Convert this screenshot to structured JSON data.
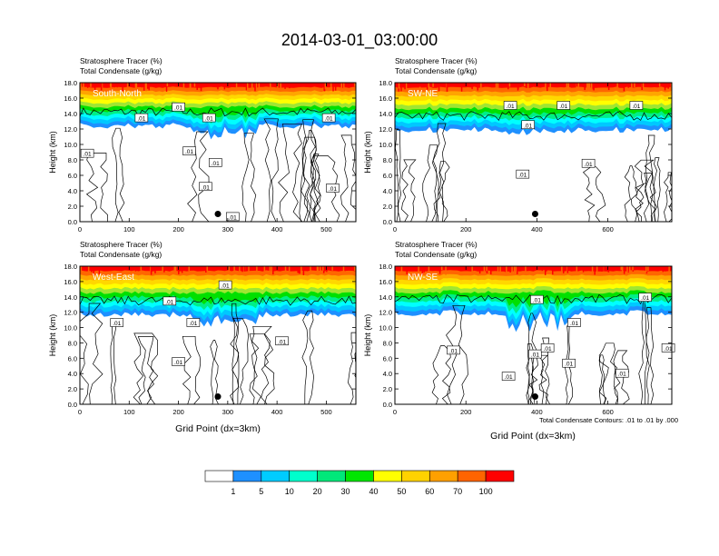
{
  "figure": {
    "title": "2014-03-01_03:00:00",
    "contour_note": "Total Condensate Contours: .01 to .01 by .000",
    "xlabel": "Grid Point (dx=3km)"
  },
  "chart_data": [
    {
      "type": "heatmap",
      "panel": "South-North",
      "subtitle1": "Stratosphere Tracer   (%)",
      "subtitle2": "Total Condensate   (g/kg)",
      "ylabel": "Height (km)",
      "xlim": [
        0,
        560
      ],
      "ylim": [
        0,
        18
      ],
      "xticks": [
        0,
        100,
        200,
        300,
        400,
        500
      ],
      "yticks": [
        "0.0",
        "2.0",
        "4.0",
        "6.0",
        "8.0",
        "10.0",
        "12.0",
        "14.0",
        "16.0",
        "18.0"
      ],
      "tracer_base_km": 13.0,
      "tracer_extend_km": 11.0,
      "marker": {
        "x": 280,
        "y_km": 1.0
      },
      "contour_labels": [
        {
          "text": ".01",
          "x": 15,
          "y_km": 8.8
        },
        {
          "text": ".01",
          "x": 125,
          "y_km": 13.4
        },
        {
          "text": ".01",
          "x": 200,
          "y_km": 14.8
        },
        {
          "text": ".01",
          "x": 262,
          "y_km": 13.4
        },
        {
          "text": ".01",
          "x": 222,
          "y_km": 9.1
        },
        {
          "text": ".01",
          "x": 275,
          "y_km": 7.6
        },
        {
          "text": ".01",
          "x": 255,
          "y_km": 4.5
        },
        {
          "text": ".01",
          "x": 513,
          "y_km": 4.3
        },
        {
          "text": ".01",
          "x": 505,
          "y_km": 13.4
        },
        {
          "text": ".01",
          "x": 310,
          "y_km": 0.6
        }
      ]
    },
    {
      "type": "heatmap",
      "panel": "SW-NE",
      "subtitle1": "Stratosphere Tracer   (%)",
      "subtitle2": "Total Condensate   (g/kg)",
      "ylabel": "Height (km)",
      "xlim": [
        0,
        780
      ],
      "ylim": [
        0,
        18
      ],
      "xticks": [
        0,
        200,
        400,
        600
      ],
      "yticks": [
        "0.0",
        "2.0",
        "4.0",
        "6.0",
        "8.0",
        "10.0",
        "12.0",
        "14.0",
        "16.0",
        "18.0"
      ],
      "tracer_base_km": 12.5,
      "tracer_extend_km": 12.0,
      "marker": {
        "x": 395,
        "y_km": 1.0
      },
      "contour_labels": [
        {
          "text": ".01",
          "x": 375,
          "y_km": 12.5
        },
        {
          "text": ".01",
          "x": 475,
          "y_km": 15.0
        },
        {
          "text": ".01",
          "x": 360,
          "y_km": 6.1
        },
        {
          "text": ".01",
          "x": 545,
          "y_km": 7.5
        },
        {
          "text": ".01",
          "x": 680,
          "y_km": 15.0
        },
        {
          "text": ".01",
          "x": 325,
          "y_km": 15.0
        }
      ]
    },
    {
      "type": "heatmap",
      "panel": "West-East",
      "subtitle1": "Stratosphere Tracer   (%)",
      "subtitle2": "Total Condensate   (g/kg)",
      "ylabel": "Height (km)",
      "xlim": [
        0,
        560
      ],
      "ylim": [
        0,
        18
      ],
      "xticks": [
        0,
        100,
        200,
        300,
        400,
        500
      ],
      "yticks": [
        "0.0",
        "2.0",
        "4.0",
        "6.0",
        "8.0",
        "10.0",
        "12.0",
        "14.0",
        "16.0",
        "18.0"
      ],
      "tracer_base_km": 12.3,
      "tracer_extend_km": 10.5,
      "marker": {
        "x": 280,
        "y_km": 1.0
      },
      "contour_labels": [
        {
          "text": ".01",
          "x": 75,
          "y_km": 10.6
        },
        {
          "text": ".01",
          "x": 182,
          "y_km": 13.4
        },
        {
          "text": ".01",
          "x": 230,
          "y_km": 10.6
        },
        {
          "text": ".01",
          "x": 200,
          "y_km": 5.5
        },
        {
          "text": ".01",
          "x": 295,
          "y_km": 15.5
        },
        {
          "text": ".01",
          "x": 410,
          "y_km": 8.2
        }
      ]
    },
    {
      "type": "heatmap",
      "panel": "NW-SE",
      "subtitle1": "Stratosphere Tracer   (%)",
      "subtitle2": "Total Condensate   (g/kg)",
      "ylabel": "Height (km)",
      "xlim": [
        0,
        780
      ],
      "ylim": [
        0,
        18
      ],
      "xticks": [
        0,
        200,
        400,
        600
      ],
      "yticks": [
        "0.0",
        "2.0",
        "4.0",
        "6.0",
        "8.0",
        "10.0",
        "12.0",
        "14.0",
        "16.0",
        "18.0"
      ],
      "tracer_base_km": 12.5,
      "tracer_extend_km": 10.0,
      "marker": {
        "x": 395,
        "y_km": 1.0
      },
      "contour_labels": [
        {
          "text": ".01",
          "x": 165,
          "y_km": 7.0
        },
        {
          "text": ".01",
          "x": 320,
          "y_km": 3.6
        },
        {
          "text": ".01",
          "x": 395,
          "y_km": 6.5
        },
        {
          "text": ".01",
          "x": 430,
          "y_km": 7.3
        },
        {
          "text": ".01",
          "x": 505,
          "y_km": 10.6
        },
        {
          "text": ".01",
          "x": 490,
          "y_km": 5.3
        },
        {
          "text": ".01",
          "x": 640,
          "y_km": 4.0
        },
        {
          "text": ".01",
          "x": 770,
          "y_km": 7.3
        },
        {
          "text": ".01",
          "x": 705,
          "y_km": 13.9
        },
        {
          "text": ".01",
          "x": 400,
          "y_km": 13.6
        }
      ]
    }
  ],
  "colorbar": {
    "labels": [
      "1",
      "5",
      "10",
      "20",
      "30",
      "40",
      "50",
      "60",
      "70",
      "100"
    ],
    "colors": [
      "#ffffff",
      "#1e90ff",
      "#00c8ff",
      "#00ffff",
      "#00ee88",
      "#00e000",
      "#a0e632",
      "#ffff00",
      "#ffd700",
      "#ffa500",
      "#ff6600",
      "#ff0000"
    ]
  }
}
